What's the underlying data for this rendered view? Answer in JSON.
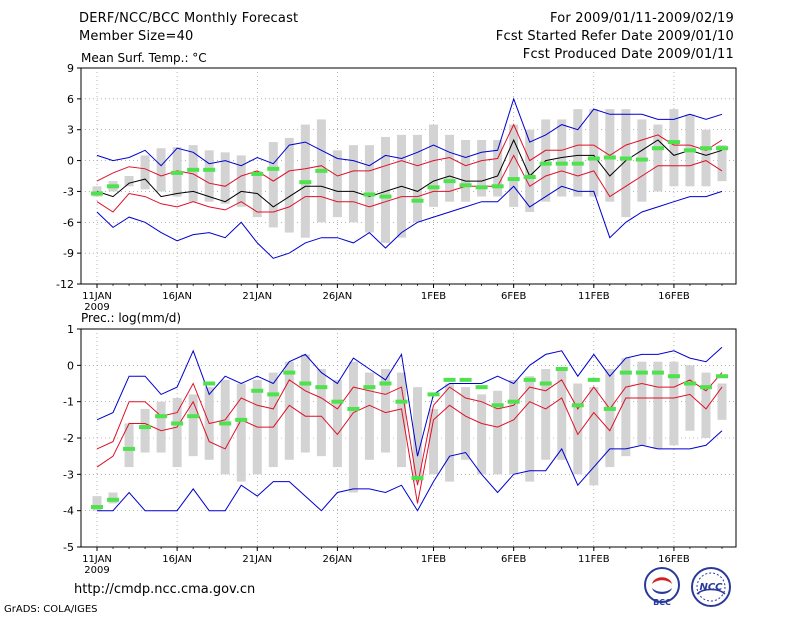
{
  "header": {
    "title": "DERF/NCC/BCC Monthly Forecast",
    "member_size": "Member Size=40",
    "period": "For 2009/01/11-2009/02/19",
    "started_refer": "Fcst Started Refer Date 2009/01/10",
    "produced": "Fcst Produced Date 2009/01/11"
  },
  "footer": {
    "url": "http://cmdp.ncc.cma.gov.cn",
    "grads": "GrADS: COLA/IGES",
    "logo_bcc_text": "BCC",
    "logo_ncc_text": "NCC"
  },
  "colors": {
    "box": "#d3d3d3",
    "median": "#000000",
    "quartile": "#e0102a",
    "extreme": "#0000d0",
    "obs": "#4ee24e",
    "grid": "#888888"
  },
  "chart_data": [
    {
      "type": "line",
      "title": "Mean Surf. Temp.: °C",
      "ylim": [
        -12,
        9
      ],
      "yticks": [
        -12,
        -9,
        -6,
        -3,
        0,
        3,
        6,
        9
      ],
      "xlim": [
        1,
        40
      ],
      "xticks": [
        {
          "day": 1,
          "label": "11JAN"
        },
        {
          "day": 6,
          "label": "16JAN"
        },
        {
          "day": 11,
          "label": "21JAN"
        },
        {
          "day": 16,
          "label": "26JAN"
        },
        {
          "day": 22,
          "label": "1FEB"
        },
        {
          "day": 27,
          "label": "6FEB"
        },
        {
          "day": 32,
          "label": "11FEB"
        },
        {
          "day": 37,
          "label": "16FEB"
        }
      ],
      "year_label": "2009",
      "box_low": [
        -3.5,
        -3.0,
        -2.5,
        -2.8,
        -3.0,
        -3.5,
        -4.0,
        -4.0,
        -4.2,
        -4.5,
        -5.5,
        -6.5,
        -7.0,
        -7.5,
        -6.0,
        -5.5,
        -6.0,
        -7.0,
        -8.0,
        -7.5,
        -6.0,
        -4.5,
        -4.0,
        -4.0,
        -3.5,
        -3.5,
        -4.5,
        -5.0,
        -4.0,
        -3.5,
        -3.5,
        -3.5,
        -4.0,
        -5.5,
        -4.0,
        -3.0,
        -2.5,
        -2.5,
        -2.5,
        -2.0
      ],
      "box_high": [
        -2.5,
        -2.0,
        -1.5,
        0.5,
        1.2,
        1.3,
        1.5,
        1.0,
        0.8,
        0.5,
        -1.0,
        1.8,
        2.2,
        3.5,
        4.0,
        1.0,
        1.5,
        1.5,
        2.3,
        2.5,
        2.5,
        3.5,
        2.5,
        2.0,
        2.0,
        2.0,
        3.5,
        3.0,
        4.0,
        4.0,
        5.0,
        5.0,
        5.0,
        5.0,
        4.0,
        3.5,
        5.0,
        4.5,
        3.0,
        1.5
      ],
      "series": [
        {
          "name": "max",
          "values": [
            0.5,
            0.0,
            0.3,
            1.0,
            -0.5,
            1.2,
            0.8,
            -0.3,
            0.0,
            -0.5,
            0.3,
            -0.3,
            1.5,
            1.8,
            1.0,
            0.2,
            0.0,
            -0.5,
            0.5,
            0.2,
            0.8,
            1.5,
            0.8,
            0.3,
            0.8,
            1.0,
            6.0,
            1.8,
            2.5,
            3.5,
            3.0,
            5.0,
            4.5,
            4.5,
            4.5,
            4.0,
            4.0,
            4.5,
            4.0,
            4.5
          ]
        },
        {
          "name": "upper",
          "values": [
            -2.0,
            -1.2,
            -0.6,
            -0.8,
            -1.5,
            -1.0,
            -1.3,
            -2.2,
            -2.5,
            -1.5,
            -1.0,
            -2.0,
            -1.0,
            -0.8,
            -0.5,
            -1.5,
            -1.0,
            -1.0,
            -0.5,
            0.0,
            -0.5,
            0.0,
            0.3,
            -0.5,
            0.0,
            0.2,
            3.5,
            0.0,
            1.0,
            1.0,
            1.5,
            1.5,
            0.5,
            1.5,
            2.0,
            2.5,
            1.5,
            1.5,
            1.0,
            2.0
          ]
        },
        {
          "name": "median",
          "values": [
            -3.0,
            -3.5,
            -2.2,
            -1.8,
            -3.5,
            -3.2,
            -3.0,
            -3.5,
            -4.0,
            -3.0,
            -3.2,
            -4.5,
            -3.5,
            -2.5,
            -2.5,
            -3.0,
            -3.0,
            -3.5,
            -3.0,
            -2.5,
            -3.0,
            -2.0,
            -1.5,
            -2.0,
            -2.0,
            -1.5,
            2.0,
            -1.5,
            0.0,
            0.3,
            0.5,
            0.5,
            -1.5,
            0.0,
            1.0,
            2.0,
            0.5,
            1.0,
            0.5,
            1.0
          ]
        },
        {
          "name": "lower",
          "values": [
            -4.0,
            -5.0,
            -3.2,
            -3.5,
            -4.2,
            -4.5,
            -4.0,
            -4.5,
            -4.8,
            -4.0,
            -5.0,
            -5.0,
            -4.5,
            -3.5,
            -3.5,
            -4.0,
            -4.0,
            -4.5,
            -4.0,
            -3.5,
            -3.5,
            -3.0,
            -3.0,
            -2.5,
            -2.5,
            -2.5,
            0.5,
            -2.5,
            -1.5,
            -1.0,
            -1.5,
            -1.0,
            -3.5,
            -2.5,
            -1.5,
            -0.5,
            -0.5,
            -0.5,
            0.0,
            -1.0
          ]
        },
        {
          "name": "min",
          "values": [
            -5.0,
            -6.5,
            -5.5,
            -6.0,
            -7.0,
            -7.8,
            -7.2,
            -7.0,
            -7.5,
            -6.0,
            -8.0,
            -9.5,
            -9.0,
            -8.0,
            -7.5,
            -7.5,
            -8.0,
            -7.0,
            -8.5,
            -7.0,
            -6.0,
            -5.5,
            -5.0,
            -4.5,
            -4.0,
            -4.0,
            -2.5,
            -4.5,
            -3.5,
            -2.5,
            -3.0,
            -3.0,
            -7.5,
            -6.0,
            -5.0,
            -4.5,
            -4.0,
            -3.5,
            -3.5,
            -3.0
          ]
        },
        {
          "name": "observed",
          "values": [
            -3.2,
            -2.5,
            null,
            null,
            null,
            -1.2,
            -0.9,
            -0.9,
            null,
            null,
            -1.3,
            -0.8,
            null,
            -2.1,
            -1.0,
            null,
            null,
            -3.3,
            -3.5,
            null,
            -3.9,
            -2.6,
            -2.0,
            -2.4,
            -2.6,
            -2.5,
            -1.8,
            -1.6,
            -0.3,
            -0.3,
            -0.3,
            0.2,
            0.3,
            0.2,
            0.1,
            1.2,
            1.8,
            1.0,
            1.2,
            1.2
          ]
        }
      ]
    },
    {
      "type": "line",
      "title": "Prec.: log(mm/d)",
      "ylim": [
        -5,
        1
      ],
      "yticks": [
        -5,
        -4,
        -3,
        -2,
        -1,
        0,
        1
      ],
      "xlim": [
        1,
        40
      ],
      "xticks": [
        {
          "day": 1,
          "label": "11JAN"
        },
        {
          "day": 6,
          "label": "16JAN"
        },
        {
          "day": 11,
          "label": "21JAN"
        },
        {
          "day": 16,
          "label": "26JAN"
        },
        {
          "day": 22,
          "label": "1FEB"
        },
        {
          "day": 27,
          "label": "6FEB"
        },
        {
          "day": 32,
          "label": "11FEB"
        },
        {
          "day": 37,
          "label": "16FEB"
        }
      ],
      "year_label": "2009",
      "box_low": [
        -4.0,
        -3.8,
        -2.8,
        -2.4,
        -2.4,
        -2.8,
        -2.5,
        -2.6,
        -3.0,
        -3.2,
        -3.0,
        -2.8,
        -2.6,
        -2.4,
        -2.5,
        -2.8,
        -3.5,
        -2.6,
        -2.4,
        -2.8,
        -3.2,
        -3.0,
        -3.2,
        -2.6,
        -3.0,
        -3.0,
        -3.0,
        -3.2,
        -2.6,
        -2.6,
        -3.0,
        -3.3,
        -2.8,
        -2.5,
        -2.2,
        -2.3,
        -2.2,
        -1.8,
        -2.0,
        -1.5
      ],
      "box_high": [
        -3.6,
        -3.5,
        -1.6,
        -1.2,
        -1.0,
        -0.9,
        -0.8,
        -0.6,
        -0.4,
        -0.5,
        -0.4,
        -0.2,
        0.1,
        0.3,
        -0.1,
        -0.4,
        0.1,
        -0.2,
        -0.1,
        -0.2,
        -0.6,
        -1.2,
        -0.5,
        -0.6,
        -0.8,
        -0.7,
        -0.4,
        -0.3,
        -0.1,
        -0.1,
        -0.5,
        -0.6,
        -0.1,
        0.2,
        0.1,
        0.1,
        0.1,
        0.0,
        -0.2,
        -0.5
      ],
      "series": [
        {
          "name": "max",
          "values": [
            -1.5,
            -1.3,
            -0.3,
            -0.3,
            -0.8,
            -0.6,
            0.4,
            -0.8,
            -0.3,
            -0.5,
            -0.3,
            -0.5,
            0.1,
            0.3,
            -0.2,
            -0.5,
            0.2,
            -0.1,
            -0.4,
            0.3,
            -2.5,
            -0.8,
            -0.5,
            -0.5,
            -0.5,
            -0.3,
            -0.5,
            0.0,
            0.3,
            0.4,
            -0.3,
            0.3,
            -0.3,
            0.2,
            0.3,
            0.3,
            0.4,
            0.2,
            0.1,
            0.5
          ]
        },
        {
          "name": "upper",
          "values": [
            -2.3,
            -2.1,
            -1.0,
            -1.0,
            -1.4,
            -1.3,
            -0.5,
            -1.6,
            -1.5,
            -0.9,
            -1.1,
            -1.2,
            -0.4,
            -0.7,
            -0.9,
            -1.2,
            -0.6,
            -0.7,
            -0.8,
            -0.6,
            -3.3,
            -1.1,
            -0.6,
            -0.9,
            -1.0,
            -1.2,
            -1.1,
            -0.6,
            -0.7,
            -0.4,
            -1.2,
            -0.6,
            -1.2,
            -0.6,
            -0.5,
            -0.6,
            -0.6,
            -0.4,
            -0.7,
            -0.2
          ]
        },
        {
          "name": "lower",
          "values": [
            -2.8,
            -2.5,
            -1.6,
            -1.6,
            -1.8,
            -1.7,
            -1.0,
            -2.1,
            -2.3,
            -1.5,
            -1.7,
            -1.7,
            -1.1,
            -1.4,
            -1.4,
            -1.9,
            -1.3,
            -1.1,
            -1.3,
            -1.2,
            -3.8,
            -1.5,
            -1.1,
            -1.4,
            -1.6,
            -1.7,
            -1.5,
            -1.0,
            -1.2,
            -0.9,
            -1.9,
            -1.3,
            -1.8,
            -0.9,
            -0.9,
            -0.9,
            -0.9,
            -0.8,
            -1.2,
            -0.6
          ]
        },
        {
          "name": "min",
          "values": [
            -4.0,
            -4.0,
            -3.5,
            -4.0,
            -4.0,
            -4.0,
            -3.4,
            -4.0,
            -4.0,
            -3.3,
            -3.6,
            -3.2,
            -3.2,
            -3.6,
            -4.0,
            -3.5,
            -3.4,
            -3.4,
            -3.5,
            -3.3,
            -4.0,
            -3.2,
            -2.5,
            -2.4,
            -3.0,
            -3.5,
            -3.0,
            -2.9,
            -2.9,
            -2.3,
            -3.3,
            -2.8,
            -2.3,
            -2.3,
            -2.2,
            -2.3,
            -2.3,
            -2.3,
            -2.2,
            -1.8
          ]
        },
        {
          "name": "observed",
          "values": [
            -3.9,
            -3.7,
            -2.3,
            -1.7,
            -1.4,
            -1.6,
            -1.4,
            -0.5,
            -1.6,
            -1.5,
            -0.7,
            -0.8,
            -0.2,
            -0.5,
            -0.6,
            -1.0,
            -1.2,
            -0.6,
            -0.5,
            -1.0,
            -3.1,
            -0.8,
            -0.4,
            -0.4,
            -0.6,
            -1.1,
            -1.0,
            -0.4,
            -0.5,
            -0.1,
            -1.1,
            -0.4,
            -1.2,
            -0.2,
            -0.2,
            -0.2,
            -0.3,
            -0.5,
            -0.6,
            -0.3
          ]
        }
      ]
    }
  ]
}
